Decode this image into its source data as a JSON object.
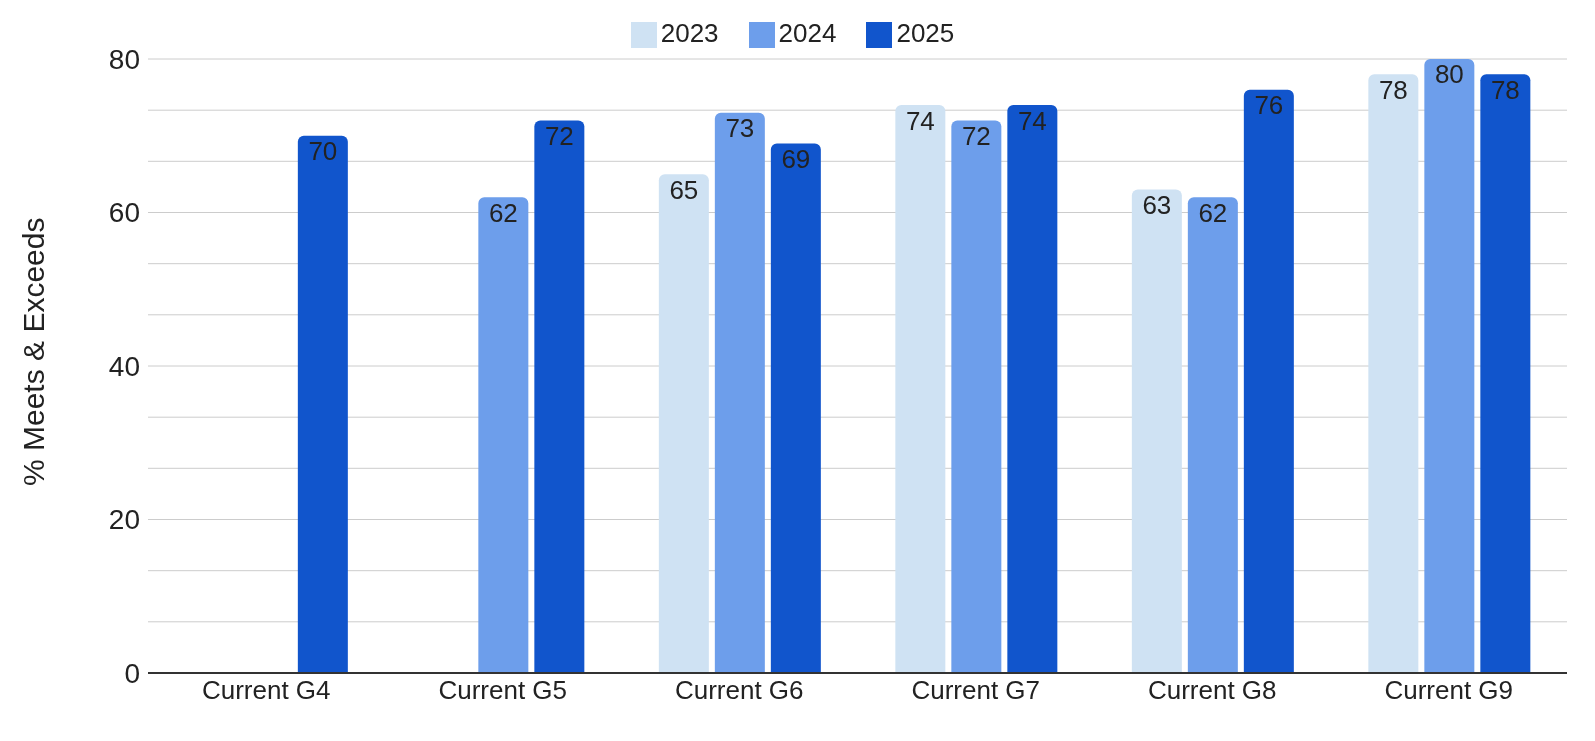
{
  "chart_data": {
    "type": "bar",
    "categories": [
      "Current G4",
      "Current G5",
      "Current G6",
      "Current G7",
      "Current G8",
      "Current G9"
    ],
    "series": [
      {
        "name": "2023",
        "color": "#cfe2f3",
        "values": [
          null,
          null,
          65,
          74,
          63,
          78
        ]
      },
      {
        "name": "2024",
        "color": "#6d9eeb",
        "values": [
          null,
          62,
          73,
          72,
          62,
          80
        ]
      },
      {
        "name": "2025",
        "color": "#1155cc",
        "values": [
          70,
          72,
          69,
          74,
          76,
          78
        ]
      }
    ],
    "ylabel": "% Meets & Exceeds",
    "ylim": [
      0,
      80
    ],
    "yticks": [
      0,
      {
        "value": 6.67,
        "label": null
      },
      {
        "value": 13.33,
        "label": null
      },
      20,
      {
        "value": 26.67,
        "label": null
      },
      {
        "value": 33.33,
        "label": null
      },
      40,
      {
        "value": 46.67,
        "label": null
      },
      {
        "value": 53.33,
        "label": null
      },
      60,
      {
        "value": 66.67,
        "label": null
      },
      {
        "value": 73.33,
        "label": null
      },
      80
    ],
    "grid": "y",
    "legend": "top",
    "data_labels": true
  }
}
